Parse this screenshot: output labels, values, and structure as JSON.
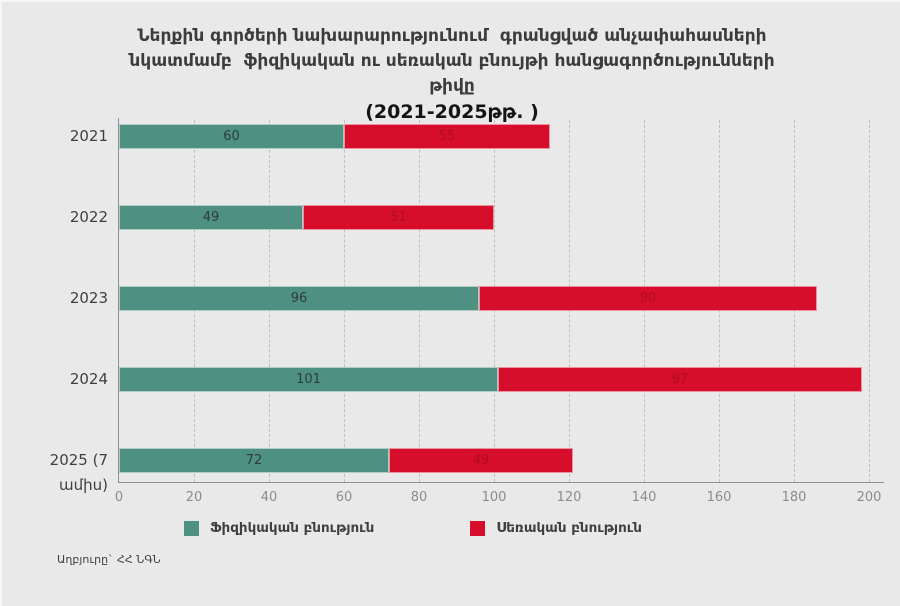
{
  "title": {
    "lines": [
      "Ներքին գործերի նախարարությունում  գրանցված անչափահասների",
      "նկատմամբ  ֆիզիկական ու սեռական բնույթի հանցագործությունների",
      "թիվը",
      "(2021-2025թթ. )"
    ]
  },
  "source": "Աղբյուրը` ՀՀ ՆԳՆ",
  "colors": {
    "background": "#e9e9e9",
    "physical": "#4e9183",
    "sexual": "#d60e2c",
    "physical_value_label": "#2e3c38",
    "sexual_value_label": "#b00d24",
    "axis": "#8f8f8f",
    "gridline": "#bfbfbf",
    "tick_text": "#8c8c8c",
    "text": "#3c3c3c"
  },
  "chart_data": {
    "type": "bar",
    "orientation": "horizontal",
    "stacked": true,
    "title": "Ներքին գործերի նախարարությունում գրանցված անչափահասների նկատմամբ ֆիզիկական ու սեռական բնույթի հանցագործությունների թիվը (2021-2025թթ.)",
    "categories": [
      "2021",
      "2022",
      "2023",
      "2024",
      "2025 (7 ամիս)"
    ],
    "series": [
      {
        "name": "Ֆիզիկական բնություն",
        "color": "#4e9183",
        "label_color": "#2e3c38",
        "values": [
          60,
          49,
          96,
          101,
          72
        ]
      },
      {
        "name": "Սեռական բնություն",
        "color": "#d60e2c",
        "label_color": "#b00d24",
        "values": [
          55,
          51,
          90,
          97,
          49
        ]
      }
    ],
    "totals": [
      115,
      100,
      186,
      198,
      121
    ],
    "xlabel": "",
    "ylabel": "",
    "xlim": [
      0,
      200
    ],
    "xticks": [
      0,
      20,
      40,
      60,
      80,
      100,
      120,
      140,
      160,
      180,
      200
    ],
    "grid": "dashed-vertical",
    "legend_position": "bottom",
    "source_note": "Աղբյուրը` ՀՀ ՆԳՆ"
  }
}
